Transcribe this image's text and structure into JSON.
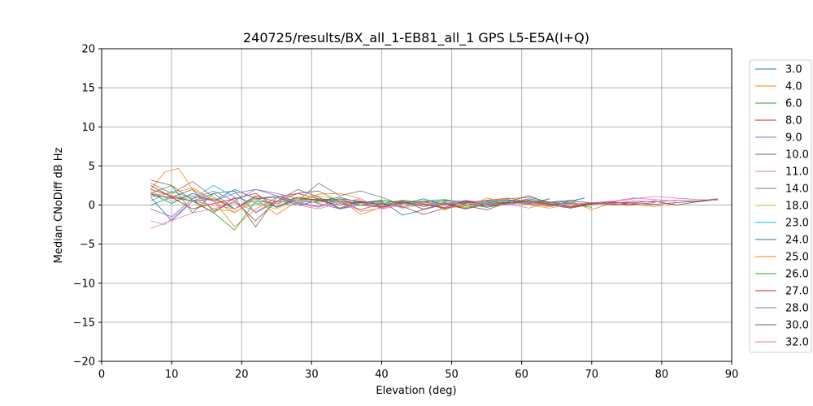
{
  "chart_data": {
    "type": "line",
    "title": "240725/results/BX_all_1-EB81_all_1 GPS L5-E5A(I+Q)",
    "xlabel": "Elevation (deg)",
    "ylabel": "Median CNoDiff dB Hz",
    "xlim": [
      0,
      90
    ],
    "ylim": [
      -20,
      20
    ],
    "xticks": [
      "0",
      "10",
      "20",
      "30",
      "40",
      "50",
      "60",
      "70",
      "80",
      "90"
    ],
    "yticks": [
      "20",
      "15",
      "10",
      "5",
      "0",
      "−5",
      "−10",
      "−15",
      "−20"
    ],
    "grid": true,
    "legend_position": "right outside",
    "series": [
      {
        "name": "3.0",
        "color": "#1f77b4",
        "x": [
          7,
          10,
          13,
          16,
          19,
          22,
          25,
          28,
          31,
          34,
          37,
          40,
          43,
          46,
          49,
          52,
          55,
          58,
          61,
          64,
          67,
          69
        ],
        "values": [
          1.0,
          -2.0,
          0.5,
          1.5,
          1.8,
          -1.0,
          0.5,
          0.2,
          0.8,
          -0.5,
          0.3,
          0.5,
          -1.3,
          -0.6,
          0.1,
          -0.5,
          0.4,
          0.2,
          0.8,
          0.3,
          0.5,
          0.9
        ]
      },
      {
        "name": "4.0",
        "color": "#ff7f0e",
        "x": [
          7,
          10,
          13,
          16,
          19,
          22,
          25,
          28,
          31,
          34,
          37,
          40,
          43,
          46,
          49,
          52,
          55,
          58,
          61,
          64,
          67,
          70,
          73,
          76,
          79,
          82
        ],
        "values": [
          1.3,
          1.5,
          2.2,
          0.6,
          -2.8,
          -0.5,
          1.0,
          0.3,
          1.4,
          1.5,
          0.8,
          -0.5,
          0.6,
          -0.6,
          0.4,
          -0.4,
          0.9,
          0.3,
          0.1,
          -0.2,
          0.5,
          -0.6,
          0.3,
          0.1,
          -0.2,
          0.2
        ]
      },
      {
        "name": "6.0",
        "color": "#2ca02c",
        "x": [
          7,
          10,
          13,
          16,
          19,
          22,
          25,
          28,
          31,
          34,
          37,
          40,
          43,
          46,
          49,
          52,
          55,
          58,
          61,
          64,
          67,
          70
        ],
        "values": [
          1.5,
          2.5,
          -1.0,
          1.5,
          -0.5,
          1.0,
          -0.3,
          0.8,
          0.7,
          0.4,
          0.3,
          0.2,
          0.6,
          0.3,
          0.5,
          0.5,
          0.3,
          0.6,
          0.5,
          0.3,
          0.2,
          -0.3
        ]
      },
      {
        "name": "8.0",
        "color": "#d62728",
        "x": [
          7,
          10,
          13,
          16,
          19,
          22,
          25,
          28,
          31,
          34,
          37,
          40,
          43,
          46,
          49,
          52,
          55,
          58,
          61,
          64,
          67,
          70,
          73,
          76
        ],
        "values": [
          2.0,
          1.2,
          0.5,
          0.8,
          -0.5,
          1.2,
          0.4,
          1.5,
          0.8,
          0.6,
          0.0,
          -0.3,
          0.3,
          0.1,
          -0.4,
          0.2,
          -0.2,
          0.3,
          0.4,
          0.1,
          -0.3,
          0.2,
          0.1,
          0.0
        ]
      },
      {
        "name": "9.0",
        "color": "#9467bd",
        "x": [
          7,
          10,
          13,
          16,
          19,
          22,
          25,
          28,
          31,
          34,
          37,
          40,
          43,
          46,
          49,
          52,
          55,
          58,
          61,
          64,
          67
        ],
        "values": [
          -0.5,
          -1.5,
          0.8,
          1.8,
          0.5,
          2.0,
          1.5,
          0.8,
          0.2,
          -0.5,
          0.0,
          0.3,
          -0.3,
          0.5,
          0.1,
          0.4,
          -0.2,
          0.1,
          0.3,
          0.0,
          0.2
        ]
      },
      {
        "name": "10.0",
        "color": "#8c564b",
        "x": [
          7,
          10,
          13,
          16,
          19,
          22,
          25,
          28,
          31,
          34,
          37,
          40,
          43,
          46,
          49,
          52,
          55,
          58,
          61,
          64,
          67,
          70,
          73,
          76,
          79,
          82,
          85,
          88
        ],
        "values": [
          3.2,
          2.5,
          0.6,
          -1.0,
          1.0,
          -2.8,
          1.0,
          1.5,
          1.8,
          0.4,
          -0.6,
          0.2,
          -0.2,
          -1.2,
          -0.4,
          -0.1,
          -0.6,
          0.3,
          0.5,
          0.0,
          -0.4,
          0.1,
          0.3,
          0.3,
          0.5,
          0.0,
          0.4,
          0.7
        ]
      },
      {
        "name": "11.0",
        "color": "#e377c2",
        "x": [
          7,
          10,
          13,
          16,
          19,
          22,
          25,
          28,
          31,
          34,
          37,
          40,
          43,
          46,
          49,
          52,
          55,
          58,
          61,
          64,
          67,
          70,
          73,
          76,
          79,
          82,
          85,
          88
        ],
        "values": [
          -3.0,
          -2.0,
          -1.0,
          -0.5,
          0.3,
          -0.8,
          0.5,
          0.2,
          -0.3,
          0.6,
          -0.8,
          -0.4,
          0.2,
          0.5,
          0.7,
          0.3,
          0.6,
          0.2,
          -0.4,
          0.3,
          0.0,
          0.2,
          0.4,
          0.8,
          1.1,
          0.9,
          0.7,
          0.6
        ]
      },
      {
        "name": "14.0",
        "color": "#7f7f7f",
        "x": [
          7,
          10,
          13,
          16,
          19,
          22,
          25,
          28,
          31,
          34,
          37,
          40,
          43,
          46,
          49,
          52,
          55,
          58,
          61,
          64,
          67,
          70
        ],
        "values": [
          2.8,
          1.5,
          3.0,
          1.0,
          -0.5,
          0.8,
          1.2,
          0.5,
          2.8,
          1.2,
          1.8,
          1.0,
          0.0,
          0.5,
          -0.6,
          0.3,
          0.6,
          0.8,
          1.0,
          0.4,
          0.6,
          0.2
        ]
      },
      {
        "name": "18.0",
        "color": "#bcbd22",
        "x": [
          7,
          10,
          13,
          16,
          19,
          22,
          25,
          28,
          31,
          34,
          37,
          40,
          43,
          46,
          49,
          52,
          55,
          58,
          61,
          64,
          67,
          70,
          73
        ],
        "values": [
          1.8,
          0.5,
          1.0,
          -0.5,
          -0.8,
          0.2,
          -0.5,
          0.8,
          1.2,
          0.6,
          0.2,
          0.4,
          -0.4,
          0.1,
          0.3,
          -0.3,
          0.2,
          0.4,
          0.0,
          -0.4,
          0.1,
          0.3,
          0.1
        ]
      },
      {
        "name": "23.0",
        "color": "#17becf",
        "x": [
          7,
          10,
          13,
          16,
          19,
          22,
          25,
          28,
          31,
          34,
          37,
          40,
          43,
          46,
          49,
          52,
          55,
          58,
          61
        ],
        "values": [
          0.5,
          1.8,
          0.8,
          2.5,
          1.0,
          0.3,
          -0.2,
          0.6,
          0.8,
          0.2,
          0.5,
          0.0,
          0.3,
          -0.2,
          0.6,
          0.4,
          0.2,
          0.7,
          0.3
        ]
      },
      {
        "name": "24.0",
        "color": "#1f77b4",
        "x": [
          7,
          10,
          13,
          16,
          19,
          22,
          25,
          28,
          31,
          34,
          37,
          40,
          43,
          46,
          49,
          52,
          55,
          58,
          61,
          64
        ],
        "values": [
          1.5,
          0.2,
          1.5,
          0.5,
          2.0,
          0.8,
          1.0,
          0.0,
          0.5,
          1.0,
          0.3,
          0.6,
          0.2,
          0.8,
          0.0,
          0.3,
          0.5,
          0.6,
          0.2,
          0.8
        ]
      },
      {
        "name": "25.0",
        "color": "#ff7f0e",
        "x": [
          7,
          9,
          11,
          13,
          16,
          19,
          22,
          25,
          28,
          31,
          34,
          37,
          40,
          43,
          46,
          49,
          52,
          55,
          58,
          61,
          64,
          67,
          70
        ],
        "values": [
          2.0,
          4.2,
          4.7,
          2.0,
          0.5,
          -1.0,
          0.8,
          -1.2,
          0.5,
          0.3,
          0.8,
          -1.2,
          -0.3,
          0.5,
          0.2,
          -0.5,
          0.1,
          0.6,
          0.9,
          0.4,
          0.0,
          -0.2,
          0.3
        ]
      },
      {
        "name": "26.0",
        "color": "#2ca02c",
        "x": [
          7,
          10,
          13,
          16,
          19,
          22,
          25,
          28,
          31,
          34,
          37,
          40,
          43,
          46,
          49,
          52,
          55,
          58,
          61,
          64,
          67,
          70
        ],
        "values": [
          0.0,
          1.0,
          0.5,
          -1.0,
          -3.2,
          0.5,
          0.2,
          1.0,
          0.5,
          0.8,
          0.0,
          0.6,
          0.3,
          0.5,
          0.7,
          0.2,
          -0.3,
          0.2,
          0.5,
          0.1,
          0.3,
          0.0
        ]
      },
      {
        "name": "27.0",
        "color": "#d62728",
        "x": [
          7,
          10,
          13,
          16,
          19,
          22,
          25,
          28,
          31,
          34,
          37,
          40,
          43,
          46,
          49,
          52,
          55,
          58,
          61,
          64,
          67,
          70,
          73,
          76,
          79
        ],
        "values": [
          1.2,
          1.0,
          -0.5,
          0.2,
          0.8,
          1.5,
          -0.3,
          1.0,
          0.6,
          0.0,
          0.4,
          -0.2,
          0.3,
          0.1,
          -0.3,
          0.5,
          0.0,
          0.3,
          0.6,
          0.1,
          -0.2,
          0.2,
          0.4,
          0.1,
          0.3
        ]
      },
      {
        "name": "28.0",
        "color": "#9467bd",
        "x": [
          7,
          10,
          13,
          16,
          19,
          22,
          25,
          28,
          31,
          34,
          37,
          40,
          43,
          46,
          49,
          52,
          55,
          58,
          61,
          64,
          67,
          70,
          73,
          76,
          79,
          82,
          85
        ],
        "values": [
          1.5,
          0.8,
          1.2,
          0.5,
          1.5,
          2.0,
          1.2,
          0.3,
          -0.2,
          0.8,
          0.5,
          -0.3,
          0.4,
          -0.5,
          0.2,
          0.6,
          0.0,
          0.4,
          0.2,
          -0.1,
          0.5,
          0.3,
          0.2,
          0.5,
          0.4,
          0.6,
          0.5
        ]
      },
      {
        "name": "30.0",
        "color": "#8c564b",
        "x": [
          7,
          10,
          13,
          16,
          19,
          22,
          25,
          28,
          31,
          34,
          37,
          40,
          43,
          46,
          49,
          52,
          55,
          58,
          61,
          64,
          67,
          70,
          73,
          76,
          79,
          82,
          85,
          88
        ],
        "values": [
          2.5,
          1.0,
          2.0,
          -0.8,
          0.5,
          -2.0,
          0.5,
          2.0,
          1.0,
          -0.4,
          0.5,
          0.0,
          0.5,
          -0.2,
          0.3,
          -0.5,
          0.1,
          0.4,
          1.2,
          0.2,
          -0.3,
          0.3,
          0.0,
          0.2,
          0.1,
          0.3,
          0.5,
          0.8
        ]
      },
      {
        "name": "32.0",
        "color": "#e377c2",
        "x": [
          7,
          9,
          11,
          13,
          16,
          19,
          22,
          25,
          28,
          31,
          34,
          37,
          40,
          43,
          46,
          49,
          52,
          55,
          58,
          61,
          64,
          67,
          70,
          73,
          76,
          79,
          82
        ],
        "values": [
          -2.0,
          -2.5,
          -1.0,
          0.5,
          0.0,
          -0.5,
          0.8,
          0.2,
          0.0,
          -0.5,
          0.3,
          0.8,
          -0.5,
          0.0,
          0.3,
          0.1,
          0.6,
          0.3,
          0.0,
          0.4,
          -0.2,
          0.1,
          0.3,
          0.5,
          0.9,
          0.7,
          0.5
        ]
      }
    ]
  }
}
